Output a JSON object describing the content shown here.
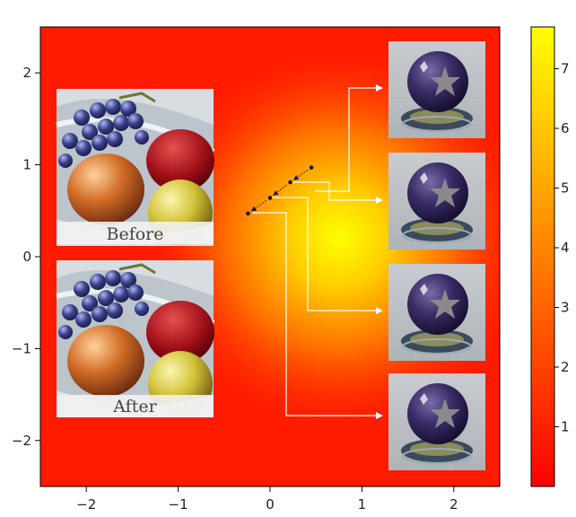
{
  "chart_data": {
    "type": "heatmap",
    "title": "",
    "xlabel": "",
    "ylabel": "",
    "xlim": [
      -2.5,
      2.5
    ],
    "ylim": [
      -2.5,
      2.5
    ],
    "xticks": [
      -2,
      -1,
      0,
      1,
      2
    ],
    "yticks": [
      -2,
      -1,
      0,
      1,
      2
    ],
    "tick_labels_x": [
      "−2",
      "−1",
      "0",
      "1",
      "2"
    ],
    "tick_labels_y": [
      "−2",
      "−1",
      "0",
      "1",
      "2"
    ],
    "field": {
      "description": "single smooth peak, low-value background",
      "peak_center": [
        0.75,
        0.2
      ],
      "peak_value": 7.6,
      "background_value": 0.2,
      "width": 1.0
    },
    "colorbar": {
      "colormap": "autumn",
      "range": [
        0,
        7.7
      ],
      "ticks": [
        1,
        2,
        3,
        4,
        5,
        6,
        7
      ],
      "tick_labels": [
        "1",
        "2",
        "3",
        "4",
        "5",
        "6",
        "7"
      ]
    },
    "trajectory": [
      {
        "x": 0.45,
        "y": 0.97
      },
      {
        "x": 0.22,
        "y": 0.81
      },
      {
        "x": 0.0,
        "y": 0.64
      },
      {
        "x": -0.24,
        "y": 0.47
      }
    ],
    "annotations": {
      "left_images": [
        {
          "caption": "Before",
          "subject": "fruit-bowl-render"
        },
        {
          "caption": "After",
          "subject": "fruit-bowl-render"
        }
      ],
      "right_images": [
        {
          "subject": "star-sphere-render",
          "from_point": 0
        },
        {
          "subject": "star-sphere-render",
          "from_point": 1
        },
        {
          "subject": "star-sphere-render",
          "from_point": 2
        },
        {
          "subject": "star-sphere-render",
          "from_point": 3
        }
      ]
    },
    "grid": false,
    "legend": "none"
  }
}
